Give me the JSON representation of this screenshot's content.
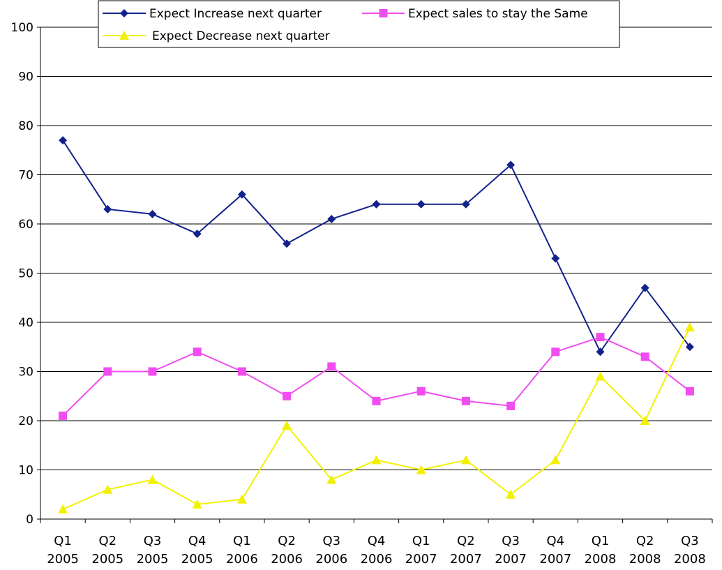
{
  "chart_data": {
    "type": "line",
    "categories": [
      [
        "Q1",
        "2005"
      ],
      [
        "Q2",
        "2005"
      ],
      [
        "Q3",
        "2005"
      ],
      [
        "Q4",
        "2005"
      ],
      [
        "Q1",
        "2006"
      ],
      [
        "Q2",
        "2006"
      ],
      [
        "Q3",
        "2006"
      ],
      [
        "Q4",
        "2006"
      ],
      [
        "Q1",
        "2007"
      ],
      [
        "Q2",
        "2007"
      ],
      [
        "Q3",
        "2007"
      ],
      [
        "Q4",
        "2007"
      ],
      [
        "Q1",
        "2008"
      ],
      [
        "Q2",
        "2008"
      ],
      [
        "Q3",
        "2008"
      ]
    ],
    "series": [
      {
        "name": "Expect Increase next quarter",
        "color": "#13228A",
        "marker": "diamond",
        "values": [
          77,
          63,
          62,
          58,
          66,
          56,
          61,
          64,
          64,
          64,
          72,
          53,
          34,
          47,
          35
        ]
      },
      {
        "name": "Expect sales to stay the Same",
        "color": "#F04CF0",
        "marker": "square",
        "values": [
          21,
          30,
          30,
          34,
          30,
          25,
          31,
          24,
          26,
          24,
          23,
          34,
          37,
          33,
          26
        ]
      },
      {
        "name": "Expect Decrease next quarter",
        "color": "#F2F200",
        "marker": "triangle",
        "values": [
          2,
          6,
          8,
          3,
          4,
          19,
          8,
          12,
          10,
          12,
          5,
          12,
          29,
          20,
          39
        ]
      }
    ],
    "yticks": [
      0,
      10,
      20,
      30,
      40,
      50,
      60,
      70,
      80,
      90,
      100
    ],
    "ylim": [
      0,
      100
    ],
    "grid": true,
    "legend_position": "top-center"
  }
}
